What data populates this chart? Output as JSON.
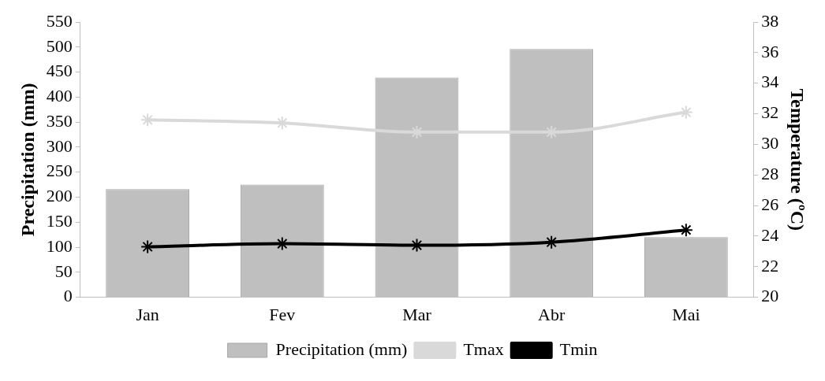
{
  "chart_data": {
    "type": "bar",
    "categories": [
      "Jan",
      "Fev",
      "Mar",
      "Abr",
      "Mai"
    ],
    "series": [
      {
        "name": "Precipitation (mm)",
        "color": "#bfbfbf",
        "values": [
          216,
          225,
          439,
          496,
          120
        ]
      },
      {
        "name": "Tmax",
        "type": "line",
        "axis": "y2",
        "color": "#d9d9d9",
        "values": [
          31.6,
          31.4,
          30.8,
          30.8,
          32.1
        ]
      },
      {
        "name": "Tmin",
        "type": "line",
        "axis": "y2",
        "color": "#000000",
        "values": [
          23.3,
          23.5,
          23.4,
          23.6,
          24.4
        ]
      }
    ],
    "ylabel": "Precipitation (mm)",
    "y2label": "Temperature (ºC)",
    "ylim": [
      0,
      550
    ],
    "yticks": [
      0,
      50,
      100,
      150,
      200,
      250,
      300,
      350,
      400,
      450,
      500,
      550
    ],
    "y2lim": [
      20,
      38
    ],
    "y2ticks": [
      20,
      22,
      24,
      26,
      28,
      30,
      32,
      34,
      36,
      38
    ],
    "marker": "cross",
    "legend": "bottom",
    "grid": false
  }
}
